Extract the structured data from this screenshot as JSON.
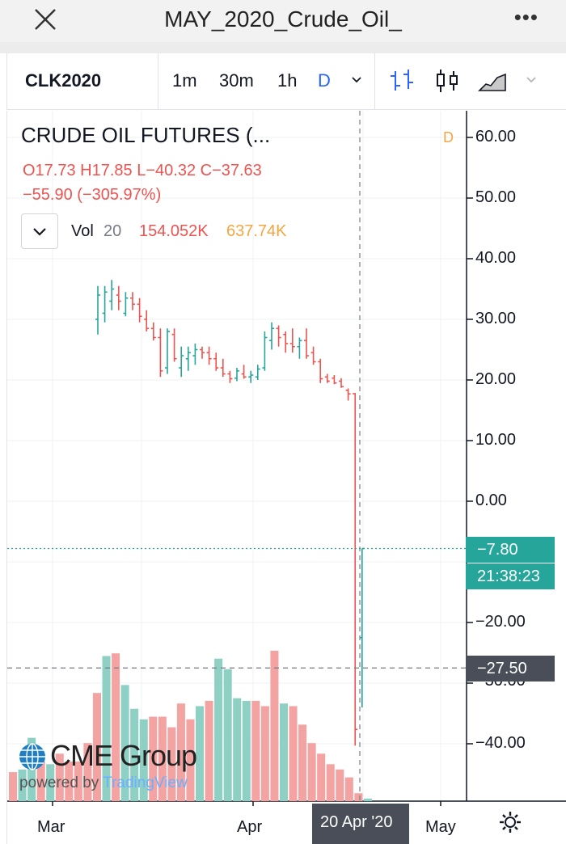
{
  "window": {
    "title": "MAY_2020_Crude_Oil_",
    "close_icon": "close-icon",
    "more_icon": "more-dots-icon"
  },
  "toolbar": {
    "symbol": "CLK2020",
    "intervals": [
      "1m",
      "30m",
      "1h",
      "D"
    ],
    "active_interval": "D",
    "icons": [
      "chevron-down-icon",
      "bars-chart-icon",
      "candles-chart-icon",
      "area-chart-icon",
      "chevron-down-icon"
    ]
  },
  "legend": {
    "name": "CRUDE OIL FUTURES (...",
    "ohlc": "O17.73  H17.85  L−40.32  C−37.63",
    "change": "−55.90 (−305.97%)",
    "interval_badge": "D"
  },
  "volume_legend": {
    "label": "Vol",
    "length": "20",
    "value": "154.052K",
    "ma_value": "637.74K"
  },
  "price_axis": {
    "ticks": [
      "60.00",
      "50.00",
      "40.00",
      "30.00",
      "20.00",
      "10.00",
      "0.00",
      "−20.00",
      "−30.00",
      "−40.00"
    ],
    "current_price": "−7.80",
    "countdown": "21:38:23",
    "crosshair_price": "−27.50"
  },
  "time_axis": {
    "labels": [
      "Mar",
      "Apr",
      "May"
    ],
    "crosshair_date": "20 Apr '20"
  },
  "branding": {
    "logo": "CME Group",
    "powered_by": "powered by",
    "platform": "TradingView"
  },
  "colors": {
    "up": "#26a69a",
    "down": "#ef5350",
    "volume_up": "#8fd0c5",
    "volume_down": "#f4a3a3"
  },
  "chart_data": {
    "type": "bar",
    "title": "CRUDE OIL FUTURES (...",
    "price_ylim": [
      -49,
      66
    ],
    "bars": [
      {
        "o": 30,
        "h": 35.5,
        "l": 27.5,
        "c": 34
      },
      {
        "o": 31,
        "h": 35.5,
        "l": 29.5,
        "c": 34.5
      },
      {
        "o": 33,
        "h": 36.5,
        "l": 31.5,
        "c": 35.0
      },
      {
        "o": 34,
        "h": 35.5,
        "l": 31.5,
        "c": 33
      },
      {
        "o": 31,
        "h": 34.5,
        "l": 30.5,
        "c": 33.5
      },
      {
        "o": 33.5,
        "h": 34.5,
        "l": 31.5,
        "c": 32.5
      },
      {
        "o": 32.5,
        "h": 33.5,
        "l": 29.5,
        "c": 30.5
      },
      {
        "o": 30,
        "h": 31.5,
        "l": 28,
        "c": 28.5
      },
      {
        "o": 28.5,
        "h": 29.5,
        "l": 26.5,
        "c": 27.0
      },
      {
        "o": 27,
        "h": 28.5,
        "l": 20.5,
        "c": 21.5
      },
      {
        "o": 22,
        "h": 28.5,
        "l": 21,
        "c": 28
      },
      {
        "o": 27.5,
        "h": 28.5,
        "l": 23,
        "c": 23.5
      },
      {
        "o": 22,
        "h": 25.5,
        "l": 20.5,
        "c": 24
      },
      {
        "o": 23.5,
        "h": 25.5,
        "l": 21.5,
        "c": 24.5
      },
      {
        "o": 24,
        "h": 26,
        "l": 22.5,
        "c": 25
      },
      {
        "o": 25,
        "h": 25.5,
        "l": 23.5,
        "c": 24.5
      },
      {
        "o": 24.5,
        "h": 25.5,
        "l": 22.5,
        "c": 23.5
      },
      {
        "o": 23.5,
        "h": 24.5,
        "l": 21.5,
        "c": 22.0
      },
      {
        "o": 22,
        "h": 23.5,
        "l": 20.5,
        "c": 21.0
      },
      {
        "o": 21,
        "h": 21.5,
        "l": 19.5,
        "c": 20.2
      },
      {
        "o": 20.3,
        "h": 22,
        "l": 19.8,
        "c": 21.5
      },
      {
        "o": 21,
        "h": 22.5,
        "l": 20.2,
        "c": 20.5
      },
      {
        "o": 20.5,
        "h": 21.5,
        "l": 19.5,
        "c": 20.8
      },
      {
        "o": 20.5,
        "h": 22.5,
        "l": 20,
        "c": 21.8
      },
      {
        "o": 22,
        "h": 28,
        "l": 21.5,
        "c": 27
      },
      {
        "o": 26.5,
        "h": 29.5,
        "l": 25,
        "c": 28.5
      },
      {
        "o": 28.5,
        "h": 29,
        "l": 25.5,
        "c": 27
      },
      {
        "o": 27.5,
        "h": 28,
        "l": 24.5,
        "c": 26
      },
      {
        "o": 26,
        "h": 28.5,
        "l": 24.5,
        "c": 25.5
      },
      {
        "o": 25.5,
        "h": 27,
        "l": 23.5,
        "c": 26.5
      },
      {
        "o": 26.5,
        "h": 28.5,
        "l": 23.5,
        "c": 24
      },
      {
        "o": 24.5,
        "h": 25.5,
        "l": 22.5,
        "c": 23.0
      },
      {
        "o": 23,
        "h": 23.5,
        "l": 19.5,
        "c": 20.2
      },
      {
        "o": 20.5,
        "h": 21,
        "l": 19.5,
        "c": 19.8
      },
      {
        "o": 20.3,
        "h": 20.8,
        "l": 19.3,
        "c": 19.5
      },
      {
        "o": 19.8,
        "h": 20.3,
        "l": 18.7,
        "c": 18.9
      },
      {
        "o": 18.3,
        "h": 18.6,
        "l": 16.6,
        "c": 17.7
      },
      {
        "o": 17.73,
        "h": 17.85,
        "l": -40.32,
        "c": -37.63
      },
      {
        "o": -22.5,
        "h": -7.8,
        "l": -34.0,
        "c": -7.8
      }
    ],
    "volume_up": [
      false,
      true,
      true,
      false,
      true,
      false,
      false,
      false,
      false,
      false,
      true,
      false,
      true,
      true,
      true,
      false,
      false,
      false,
      false,
      false,
      true,
      false,
      true,
      true,
      true,
      true,
      false,
      false,
      false,
      true,
      false,
      false,
      false,
      false,
      false,
      false,
      false,
      false,
      true
    ],
    "volume": [
      5.5,
      6.0,
      12.0,
      7.5,
      7.0,
      9.0,
      7.5,
      7.5,
      11.0,
      20.5,
      27.5,
      28.0,
      22.0,
      17.5,
      15.5,
      16.0,
      16.0,
      14.0,
      18.5,
      15.5,
      18.0,
      19.0,
      27.0,
      25.0,
      19.5,
      19.0,
      19.0,
      18.0,
      28.5,
      18.5,
      18.0,
      14.5,
      11.0,
      9.0,
      7.0,
      6.0,
      4.5,
      1.5,
      0.5
    ],
    "volume_ylim": [
      0,
      34
    ],
    "x_labels": [
      "Mar",
      "Apr",
      "May"
    ],
    "crosshair_date": "20 Apr '20",
    "crosshair_price": -27.5,
    "current_price": -7.8
  }
}
